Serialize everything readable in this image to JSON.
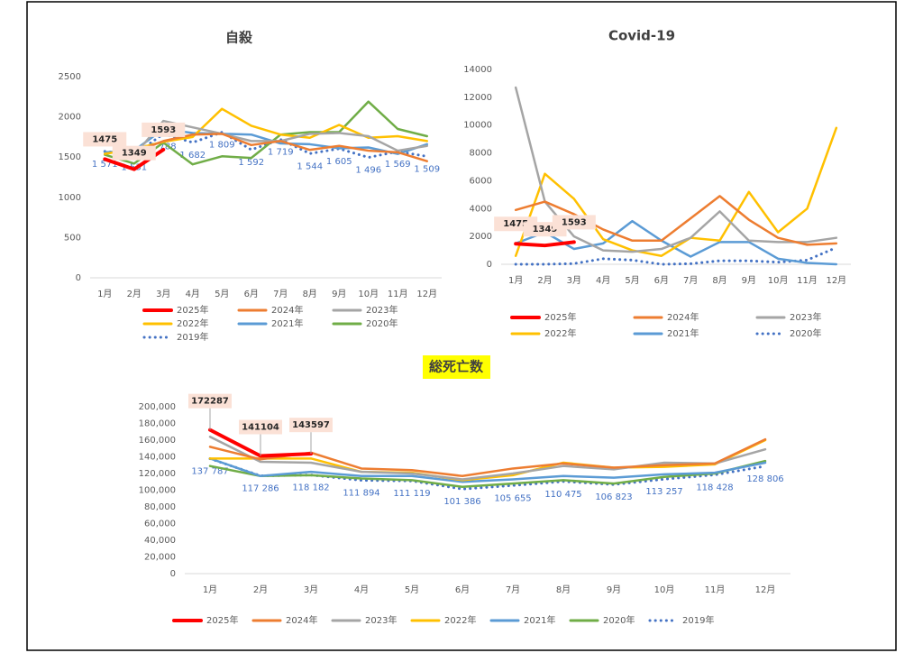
{
  "chart_data": [
    {
      "type": "line",
      "title": "自殺",
      "categories": [
        "1月",
        "2月",
        "3月",
        "4月",
        "5月",
        "6月",
        "7月",
        "8月",
        "9月",
        "10月",
        "11月",
        "12月"
      ],
      "ylim": [
        0,
        2500
      ],
      "yticks": [
        0,
        500,
        1000,
        1500,
        2000,
        2500
      ],
      "series": [
        {
          "name": "2025年",
          "color": "#ff0000",
          "values": [
            1475,
            1349,
            1593,
            null,
            null,
            null,
            null,
            null,
            null,
            null,
            null,
            null
          ]
        },
        {
          "name": "2024年",
          "color": "#ed7d31",
          "values": [
            1750,
            1560,
            1700,
            1780,
            1790,
            1650,
            1700,
            1590,
            1640,
            1580,
            1560,
            1450
          ]
        },
        {
          "name": "2023年",
          "color": "#a5a5a5",
          "values": [
            1730,
            1520,
            1950,
            1870,
            1790,
            1700,
            1700,
            1790,
            1800,
            1760,
            1580,
            1640
          ]
        },
        {
          "name": "2022年",
          "color": "#ffc000",
          "values": [
            1540,
            1600,
            1690,
            1750,
            2100,
            1890,
            1780,
            1740,
            1900,
            1740,
            1760,
            1700
          ]
        },
        {
          "name": "2021年",
          "color": "#5b9bd5",
          "values": [
            1560,
            1580,
            1850,
            1800,
            1790,
            1780,
            1670,
            1660,
            1610,
            1620,
            1540,
            1660
          ]
        },
        {
          "name": "2020年",
          "color": "#70ad47",
          "values": [
            1530,
            1420,
            1680,
            1410,
            1510,
            1490,
            1780,
            1810,
            1810,
            2190,
            1850,
            1760
          ]
        },
        {
          "name": "2019年",
          "color": "#4472c4",
          "dotted": true,
          "values": [
            1571,
            1531,
            1788,
            1682,
            1809,
            1592,
            1719,
            1544,
            1605,
            1496,
            1569,
            1509
          ],
          "value_labels": [
            "1 571",
            "1 531",
            "1 788",
            "1 682",
            "1 809",
            "1 592",
            "1 719",
            "1 544",
            "1 605",
            "1 496",
            "1 569",
            "1 509"
          ]
        }
      ]
    },
    {
      "type": "line",
      "title": "Covid-19",
      "categories": [
        "1月",
        "2月",
        "3月",
        "4月",
        "5月",
        "6月",
        "7月",
        "8月",
        "9月",
        "10月",
        "11月",
        "12月"
      ],
      "ylim": [
        0,
        14000
      ],
      "yticks": [
        0,
        2000,
        4000,
        6000,
        8000,
        10000,
        12000,
        14000
      ],
      "series": [
        {
          "name": "2025年",
          "color": "#ff0000",
          "values": [
            1475,
            1349,
            1593,
            null,
            null,
            null,
            null,
            null,
            null,
            null,
            null,
            null
          ]
        },
        {
          "name": "2024年",
          "color": "#ed7d31",
          "values": [
            3900,
            4500,
            3600,
            2500,
            1700,
            1700,
            3300,
            4900,
            3200,
            1900,
            1400,
            1500
          ]
        },
        {
          "name": "2023年",
          "color": "#a5a5a5",
          "values": [
            12700,
            4500,
            2000,
            1000,
            900,
            1100,
            1900,
            3800,
            1700,
            1600,
            1600,
            1900
          ]
        },
        {
          "name": "2022年",
          "color": "#ffc000",
          "values": [
            600,
            6500,
            4700,
            1800,
            1000,
            600,
            1900,
            1700,
            5200,
            2300,
            4000,
            9800
          ]
        },
        {
          "name": "2021年",
          "color": "#5b9bd5",
          "values": [
            1500,
            2300,
            1100,
            1500,
            3100,
            1700,
            550,
            1600,
            1600,
            400,
            100,
            0
          ]
        },
        {
          "name": "2020年",
          "color": "#4472c4",
          "dotted": true,
          "values": [
            0,
            0,
            50,
            400,
            300,
            0,
            40,
            250,
            250,
            150,
            300,
            1200
          ]
        }
      ]
    },
    {
      "type": "line",
      "title": "総死亡数",
      "categories": [
        "1月",
        "2月",
        "3月",
        "4月",
        "5月",
        "6月",
        "7月",
        "8月",
        "9月",
        "10月",
        "11月",
        "12月"
      ],
      "ylim": [
        0,
        200000
      ],
      "yticks": [
        0,
        {
          "value": 20000,
          "label": "20,000"
        },
        {
          "value": 40000,
          "label": "40,000"
        },
        {
          "value": 60000,
          "label": "60,000"
        },
        {
          "value": 80000,
          "label": "80,000"
        },
        {
          "value": 100000,
          "label": "100,000"
        },
        {
          "value": 120000,
          "label": "120,000"
        },
        {
          "value": 140000,
          "label": "140,000"
        },
        {
          "value": 160000,
          "label": "160,000"
        },
        {
          "value": 180000,
          "label": "180,000"
        },
        {
          "value": 200000,
          "label": "200,000"
        }
      ],
      "series": [
        {
          "name": "2025年",
          "color": "#ff0000",
          "values": [
            172287,
            141104,
            143597,
            null,
            null,
            null,
            null,
            null,
            null,
            null,
            null,
            null
          ]
        },
        {
          "name": "2024年",
          "color": "#ed7d31",
          "values": [
            152000,
            137000,
            145000,
            126000,
            124000,
            117000,
            126000,
            132000,
            127000,
            130000,
            132000,
            161000
          ]
        },
        {
          "name": "2023年",
          "color": "#a5a5a5",
          "values": [
            164000,
            134000,
            133000,
            122000,
            120000,
            113000,
            120000,
            129000,
            125000,
            133000,
            132000,
            149000
          ]
        },
        {
          "name": "2022年",
          "color": "#ffc000",
          "values": [
            138000,
            138000,
            138000,
            122000,
            121000,
            112000,
            118000,
            133000,
            127000,
            128000,
            131000,
            160000
          ]
        },
        {
          "name": "2021年",
          "color": "#5b9bd5",
          "values": [
            138000,
            117000,
            122000,
            117000,
            117000,
            110000,
            113000,
            117000,
            115000,
            119000,
            121000,
            133000
          ]
        },
        {
          "name": "2020年",
          "color": "#70ad47",
          "values": [
            129000,
            117000,
            118000,
            114000,
            112000,
            104000,
            108000,
            112000,
            108000,
            116000,
            120000,
            135000
          ]
        },
        {
          "name": "2019年",
          "color": "#4472c4",
          "dotted": true,
          "values": [
            137787,
            117286,
            118182,
            111894,
            111119,
            101386,
            105655,
            110475,
            106823,
            113257,
            118428,
            128806
          ],
          "value_labels": [
            "137 787",
            "117 286",
            "118 182",
            "111 894",
            "111 119",
            "101 386",
            "105 655",
            "110 475",
            "106 823",
            "113 257",
            "118 428",
            "128 806"
          ]
        }
      ]
    }
  ]
}
